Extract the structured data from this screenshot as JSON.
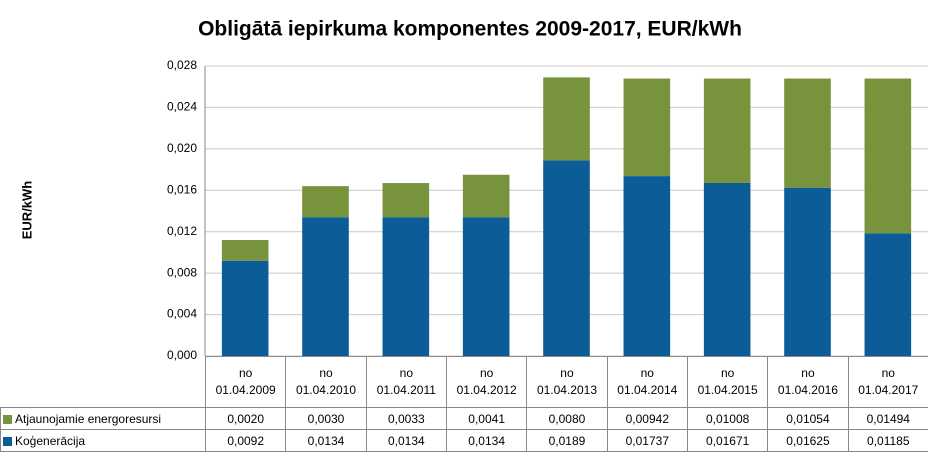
{
  "chart_data": {
    "type": "stacked_bar",
    "title": "Obligātā iepirkuma komponentes 2009-2017, EUR/kWh",
    "y_label": "EUR/kWh",
    "categories": [
      "no 01.04.2009",
      "no 01.04.2010",
      "no 01.04.2011",
      "no 01.04.2012",
      "no 01.04.2013",
      "no 01.04.2014",
      "no 01.04.2015",
      "no 01.04.2016",
      "no 01.04.2017"
    ],
    "series": [
      {
        "name": "Atjaunojamie energoresursi",
        "color": "#77933c",
        "values": [
          0.002,
          0.003,
          0.0033,
          0.0041,
          0.008,
          0.00942,
          0.01008,
          0.01054,
          0.01494
        ],
        "value_labels": [
          "0,0020",
          "0,0030",
          "0,0033",
          "0,0041",
          "0,0080",
          "0,00942",
          "0,01008",
          "0,01054",
          "0,01494"
        ]
      },
      {
        "name": "Koģenerācija",
        "color": "#0b5c97",
        "values": [
          0.0092,
          0.0134,
          0.0134,
          0.0134,
          0.0189,
          0.01737,
          0.01671,
          0.01625,
          0.01185
        ],
        "value_labels": [
          "0,0092",
          "0,0134",
          "0,0134",
          "0,0134",
          "0,0189",
          "0,01737",
          "0,01671",
          "0,01625",
          "0,01185"
        ]
      }
    ],
    "ylim": [
      0,
      0.028
    ],
    "yticks": [
      {
        "value": 0,
        "label": "0,000"
      },
      {
        "value": 0.004,
        "label": "0,004"
      },
      {
        "value": 0.008,
        "label": "0,008"
      },
      {
        "value": 0.012,
        "label": "0,012"
      },
      {
        "value": 0.016,
        "label": "0,016"
      },
      {
        "value": 0.02,
        "label": "0,020"
      },
      {
        "value": 0.024,
        "label": "0,024"
      },
      {
        "value": 0.028,
        "label": "0,028"
      }
    ],
    "grid": true
  }
}
